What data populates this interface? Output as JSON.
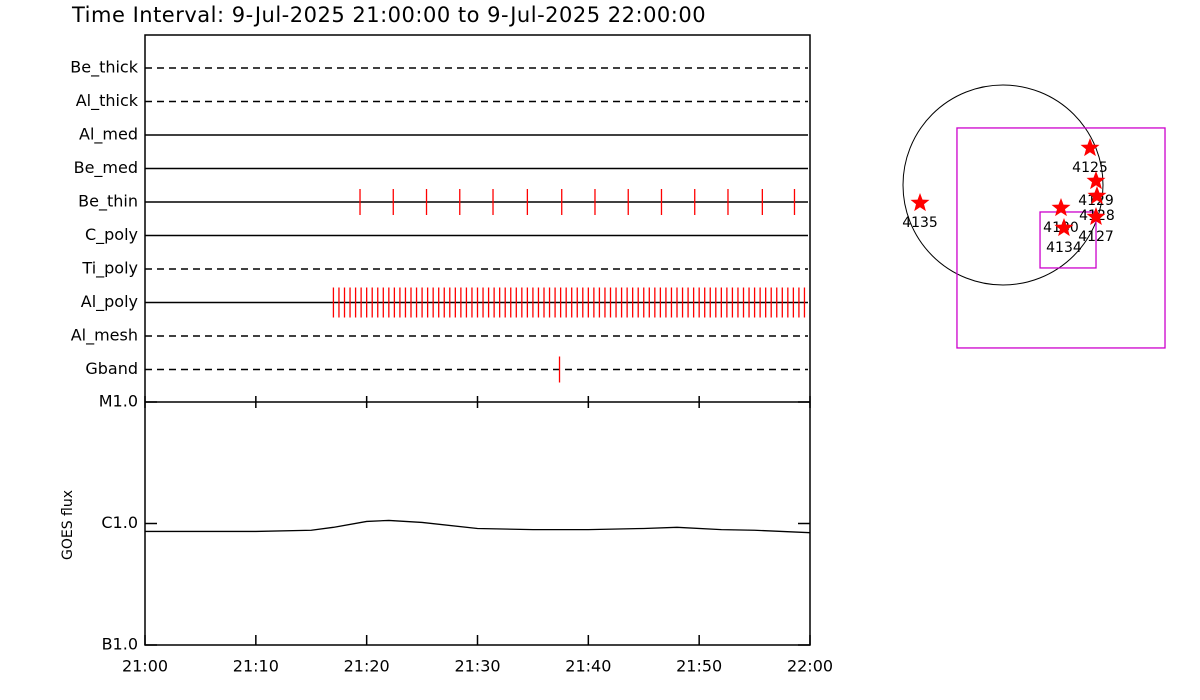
{
  "chart_data": [
    {
      "type": "timeline",
      "title": "Time Interval:  9-Jul-2025 21:00:00 to  9-Jul-2025 22:00:00",
      "xlim": [
        0,
        60
      ],
      "color": "#ff0000",
      "rows": [
        {
          "name": "Be_thick",
          "line": "dashed",
          "x": []
        },
        {
          "name": "Al_thick",
          "line": "dashed",
          "x": []
        },
        {
          "name": "Al_med",
          "line": "solid",
          "x": []
        },
        {
          "name": "Be_med",
          "line": "solid",
          "x": []
        },
        {
          "name": "Be_thin",
          "line": "solid",
          "x": [
            19.4,
            22.4,
            25.4,
            28.4,
            31.4,
            34.5,
            37.6,
            40.6,
            43.6,
            46.6,
            49.6,
            52.6,
            55.7,
            58.6
          ]
        },
        {
          "name": "C_poly",
          "line": "solid",
          "x": []
        },
        {
          "name": "Ti_poly",
          "line": "dashed",
          "x": []
        },
        {
          "name": "Al_poly",
          "line": "solid",
          "x": [
            17,
            17.5,
            18,
            18.5,
            19,
            19.5,
            20,
            20.5,
            21,
            21.5,
            22,
            22.5,
            23,
            23.5,
            24,
            24.5,
            25,
            25.5,
            26,
            26.5,
            27,
            27.5,
            28,
            28.5,
            29,
            29.5,
            30,
            30.5,
            31,
            31.5,
            32,
            32.5,
            33,
            33.5,
            34,
            34.5,
            35,
            35.5,
            36,
            36.5,
            37,
            37.5,
            38,
            38.5,
            39,
            39.5,
            40,
            40.5,
            41,
            41.5,
            42,
            42.5,
            43,
            43.5,
            44,
            44.5,
            45,
            45.5,
            46,
            46.5,
            47,
            47.5,
            48,
            48.5,
            49,
            49.5,
            50,
            50.5,
            51,
            51.5,
            52,
            52.5,
            53,
            53.5,
            54,
            54.5,
            55,
            55.5,
            56,
            56.5,
            57,
            57.5,
            58,
            58.5,
            59,
            59.5
          ]
        },
        {
          "name": "Al_mesh",
          "line": "dashed",
          "x": []
        },
        {
          "name": "Gband",
          "line": "dashed",
          "x": [
            37.4
          ]
        }
      ]
    },
    {
      "type": "line",
      "ylabel": "GOES flux",
      "color": "#000000",
      "log_scale": true,
      "x": [
        0,
        5,
        10,
        15,
        17,
        20,
        22,
        25,
        30,
        35,
        40,
        45,
        48,
        52,
        55,
        60
      ],
      "values": [
        8.6e-07,
        8.6e-07,
        8.6e-07,
        8.8e-07,
        9.3e-07,
        1.04e-06,
        1.06e-06,
        1.02e-06,
        9.1e-07,
        8.9e-07,
        8.9e-07,
        9.1e-07,
        9.3e-07,
        8.9e-07,
        8.8e-07,
        8.4e-07
      ],
      "xlim": [
        0,
        60
      ],
      "xticks": [
        {
          "value": 0,
          "label": "21:00"
        },
        {
          "value": 10,
          "label": "21:10"
        },
        {
          "value": 20,
          "label": "21:20"
        },
        {
          "value": 30,
          "label": "21:30"
        },
        {
          "value": 40,
          "label": "21:40"
        },
        {
          "value": 50,
          "label": "21:50"
        },
        {
          "value": 60,
          "label": "22:00"
        }
      ],
      "ylim": [
        1e-07,
        1e-05
      ],
      "yticks": [
        {
          "value": 1e-07,
          "label": "B1.0"
        },
        {
          "value": 1e-06,
          "label": "C1.0"
        },
        {
          "value": 1e-05,
          "label": "M1.0"
        }
      ]
    },
    {
      "type": "map",
      "disk_radius": 945,
      "fov_color": "#cc00cc",
      "star_color": "#ff0000",
      "fovs": [
        {
          "x0": -435,
          "x1": 1531,
          "y0": -1540,
          "y1": 539
        },
        {
          "x0": 350,
          "x1": 879,
          "y0": -784,
          "y1": -255
        }
      ],
      "regions": [
        {
          "name": "4125",
          "x": 822,
          "y": 350
        },
        {
          "name": "4129",
          "x": 879,
          "y": 38
        },
        {
          "name": "4128",
          "x": 888,
          "y": -104
        },
        {
          "name": "4130",
          "x": 548,
          "y": -217
        },
        {
          "name": "4134",
          "x": 576,
          "y": -406
        },
        {
          "name": "4127",
          "x": 879,
          "y": -302
        },
        {
          "name": "4135",
          "x": -784,
          "y": -170
        }
      ]
    }
  ]
}
